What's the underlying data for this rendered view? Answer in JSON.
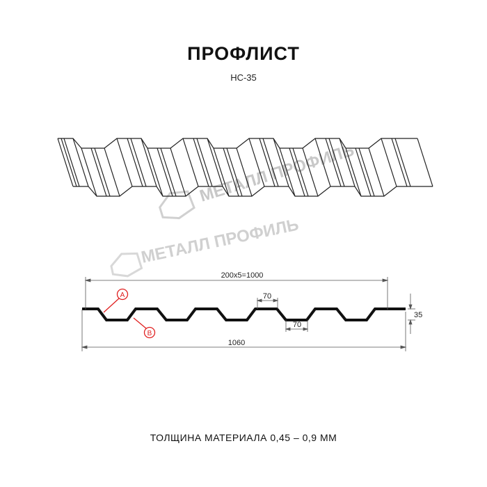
{
  "header": {
    "title": "ПРОФЛИСТ",
    "subtitle": "НС-35"
  },
  "watermark": {
    "text": "МЕТАЛЛ ПРОФИЛЬ",
    "color": "#c8c8c8"
  },
  "drawing": {
    "dim_pitch_total": "200x5=1000",
    "dim_rib_top": "70",
    "dim_rib_bottom": "70",
    "dim_height": "35",
    "dim_overall_width": "1060",
    "callout_a": "A",
    "callout_b": "B",
    "callout_color": "#e02020"
  },
  "footer": {
    "thickness": "ТОЛЩИНА МАТЕРИАЛА 0,45 – 0,9 ММ"
  }
}
